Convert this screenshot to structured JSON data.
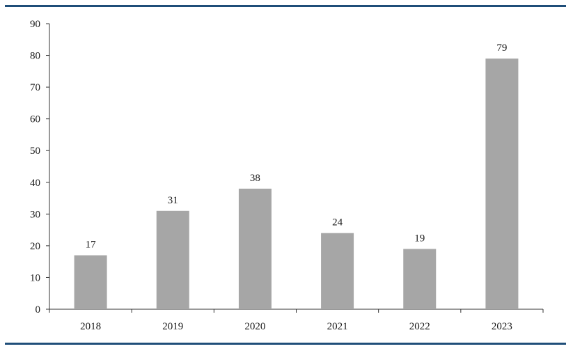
{
  "chart_data": {
    "type": "bar",
    "categories": [
      "2018",
      "2019",
      "2020",
      "2021",
      "2022",
      "2023"
    ],
    "values": [
      17,
      31,
      38,
      24,
      19,
      79
    ],
    "data_labels": [
      "17",
      "31",
      "38",
      "24",
      "19",
      "79"
    ],
    "title": "",
    "xlabel": "",
    "ylabel": "",
    "ylim": [
      0,
      90
    ],
    "yticks": [
      "0",
      "10",
      "20",
      "30",
      "40",
      "50",
      "60",
      "70",
      "80",
      "90"
    ],
    "grid": false,
    "legend": "none",
    "bar_color": "#a6a6a6",
    "rule_color": "#1f4e79"
  }
}
